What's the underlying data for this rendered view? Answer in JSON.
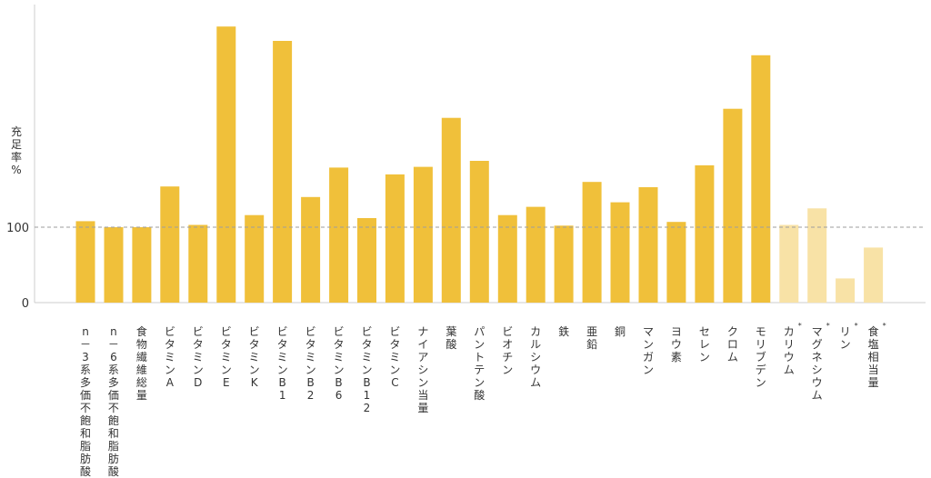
{
  "chart_data": {
    "type": "bar",
    "ylabel": "充足率%",
    "ylabel_chars": [
      "充",
      "足",
      "率",
      "%"
    ],
    "yticks": [
      0,
      100
    ],
    "ylim": [
      0,
      400
    ],
    "reference_line": 100,
    "grid": false,
    "colors": {
      "primary": "#f0c03a",
      "secondary": "#f8e2a6",
      "refline": "#9e9e9e",
      "axis": "#cccccc"
    },
    "categories": [
      "n－3系多価不飽和脂肪酸",
      "n－6系多価不飽和脂肪酸",
      "食物繊維総量",
      "ビタミンA",
      "ビタミンD",
      "ビタミンE",
      "ビタミンK",
      "ビタミンB1",
      "ビタミンB2",
      "ビタミンB6",
      "ビタミンB12",
      "ビタミンC",
      "ナイアシン当量",
      "葉酸",
      "パントテン酸",
      "ビオチン",
      "カルシウム",
      "鉄",
      "亜鉛",
      "銅",
      "マンガン",
      "ヨウ素",
      "セレン",
      "クロム",
      "モリブデン",
      "カリウム",
      "マグネシウム",
      "リン",
      "食塩相当量"
    ],
    "asterisk": [
      false,
      false,
      false,
      false,
      false,
      false,
      false,
      false,
      false,
      false,
      false,
      false,
      false,
      false,
      false,
      false,
      false,
      false,
      false,
      false,
      false,
      false,
      false,
      false,
      false,
      true,
      true,
      true,
      true
    ],
    "label_chars": [
      [
        "n",
        "－",
        "3",
        "系",
        "多",
        "価",
        "不",
        "飽",
        "和",
        "脂",
        "肪",
        "酸"
      ],
      [
        "n",
        "－",
        "6",
        "系",
        "多",
        "価",
        "不",
        "飽",
        "和",
        "脂",
        "肪",
        "酸"
      ],
      [
        "食",
        "物",
        "繊",
        "維",
        "総",
        "量"
      ],
      [
        "ビ",
        "タ",
        "ミ",
        "ン",
        "A"
      ],
      [
        "ビ",
        "タ",
        "ミ",
        "ン",
        "D"
      ],
      [
        "ビ",
        "タ",
        "ミ",
        "ン",
        "E"
      ],
      [
        "ビ",
        "タ",
        "ミ",
        "ン",
        "K"
      ],
      [
        "ビ",
        "タ",
        "ミ",
        "ン",
        "B",
        "1"
      ],
      [
        "ビ",
        "タ",
        "ミ",
        "ン",
        "B",
        "2"
      ],
      [
        "ビ",
        "タ",
        "ミ",
        "ン",
        "B",
        "6"
      ],
      [
        "ビ",
        "タ",
        "ミ",
        "ン",
        "B",
        "1",
        "2"
      ],
      [
        "ビ",
        "タ",
        "ミ",
        "ン",
        "C"
      ],
      [
        "ナ",
        "イ",
        "ア",
        "シ",
        "ン",
        "当",
        "量"
      ],
      [
        "葉",
        "酸"
      ],
      [
        "パ",
        "ン",
        "ト",
        "テ",
        "ン",
        "酸"
      ],
      [
        "ビ",
        "オ",
        "チ",
        "ン"
      ],
      [
        "カ",
        "ル",
        "シ",
        "ウ",
        "ム"
      ],
      [
        "鉄"
      ],
      [
        "亜",
        "鉛"
      ],
      [
        "銅"
      ],
      [
        "マ",
        "ン",
        "ガ",
        "ン"
      ],
      [
        "ヨ",
        "ウ",
        "素"
      ],
      [
        "セ",
        "レ",
        "ン"
      ],
      [
        "ク",
        "ロ",
        "ム"
      ],
      [
        "モ",
        "リ",
        "ブ",
        "デ",
        "ン"
      ],
      [
        "カ",
        "リ",
        "ウ",
        "ム"
      ],
      [
        "マ",
        "グ",
        "ネ",
        "シ",
        "ウ",
        "ム"
      ],
      [
        "リ",
        "ン"
      ],
      [
        "食",
        "塩",
        "相",
        "当",
        "量"
      ]
    ],
    "values": [
      108,
      100,
      100,
      154,
      103,
      366,
      116,
      347,
      140,
      179,
      112,
      170,
      180,
      245,
      188,
      116,
      127,
      102,
      160,
      133,
      153,
      107,
      182,
      257,
      328,
      103,
      125,
      32,
      73
    ],
    "series_variant": [
      "primary",
      "primary",
      "primary",
      "primary",
      "primary",
      "primary",
      "primary",
      "primary",
      "primary",
      "primary",
      "primary",
      "primary",
      "primary",
      "primary",
      "primary",
      "primary",
      "primary",
      "primary",
      "primary",
      "primary",
      "primary",
      "primary",
      "primary",
      "primary",
      "primary",
      "secondary",
      "secondary",
      "secondary",
      "secondary"
    ],
    "asterisk_mark": "*"
  }
}
